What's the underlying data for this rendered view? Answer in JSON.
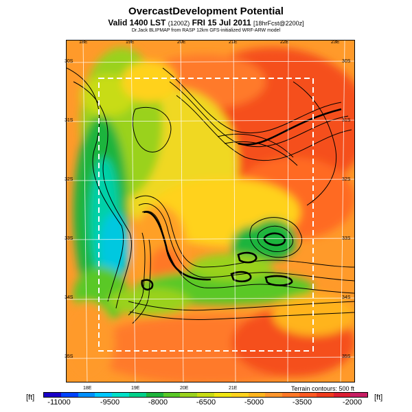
{
  "title": "OvercastDevelopment Potential",
  "subtitle": {
    "main": "Valid 1400 LST",
    "utc": "(1200Z)",
    "date": "FRI 15 Jul 2011",
    "fcst": "[18hrFcst@2200z]"
  },
  "credit": "Dr.Jack BLIPMAP from RASP 12km GFS-initialized WRF-ARW model",
  "map": {
    "top_lon_labels": [
      "18E",
      "19E",
      "20E",
      "21E",
      "22E",
      "23E"
    ],
    "bottom_lon_labels": [
      "18E",
      "19E",
      "20E",
      "21E"
    ],
    "left_lat_labels": [
      "30S",
      "31S",
      "32S",
      "33S",
      "34S",
      "35S"
    ],
    "right_lat_labels": [
      "30S",
      "31S",
      "32S",
      "33S",
      "34S",
      "35S"
    ],
    "terrain_note": "Terrain contours: 500 ft"
  },
  "colorbar": {
    "unit_left": "[ft]",
    "unit_right": "[ft]",
    "colors": [
      "#1a00c8",
      "#0044ff",
      "#0090ff",
      "#00c8ff",
      "#00e0c8",
      "#00d08a",
      "#1eb43c",
      "#5ac828",
      "#9ad21e",
      "#c8dc14",
      "#f0e614",
      "#ffd21e",
      "#ffb41e",
      "#ff962d",
      "#ff7828",
      "#ff5a23",
      "#f03c1e",
      "#dc1e32",
      "#c81e64"
    ],
    "ticks": [
      "-11000",
      "-9500",
      "-8000",
      "-6500",
      "-5000",
      "-3500",
      "-2000"
    ]
  }
}
